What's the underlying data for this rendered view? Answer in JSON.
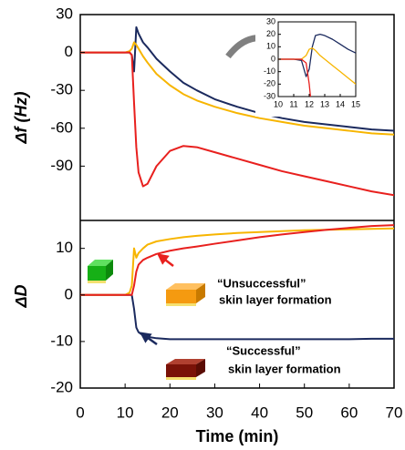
{
  "chart_data": [
    {
      "type": "line",
      "ylabel": "Δf (Hz)",
      "xlim": [
        0,
        70
      ],
      "ylim": [
        -133,
        30
      ],
      "yticks": [
        -90,
        -60,
        -30,
        0,
        30
      ],
      "x": [
        0,
        5,
        10,
        11,
        11.5,
        12,
        12.5,
        13,
        14,
        15,
        17,
        20,
        23,
        26,
        30,
        35,
        40,
        45,
        50,
        55,
        60,
        65,
        70
      ],
      "series": [
        {
          "color": "#1b2a5e",
          "values": [
            0,
            0,
            0,
            0,
            -2,
            -15,
            20,
            15,
            8,
            4,
            -5,
            -15,
            -24,
            -30,
            -37,
            -43,
            -48,
            -52,
            -55,
            -57,
            -59,
            -61,
            -62
          ]
        },
        {
          "color": "#f7b500",
          "values": [
            0,
            0,
            0,
            1,
            3,
            8,
            6,
            3,
            -3,
            -8,
            -17,
            -26,
            -33,
            -38,
            -43,
            -48,
            -52,
            -55,
            -58,
            -60,
            -62,
            -64,
            -65
          ]
        },
        {
          "color": "#e8201e",
          "values": [
            0,
            0,
            0,
            0,
            -2,
            -40,
            -75,
            -95,
            -106,
            -104,
            -90,
            -78,
            -74,
            -75,
            -79,
            -84,
            -89,
            -94,
            -98,
            -102,
            -106,
            -110,
            -113
          ]
        }
      ]
    },
    {
      "type": "line",
      "ylabel": "ΔD",
      "xlabel": "Time (min)",
      "xlim": [
        0,
        70
      ],
      "ylim": [
        -20,
        16
      ],
      "yticks": [
        -20,
        -10,
        0,
        10
      ],
      "xticks": [
        0,
        10,
        20,
        30,
        40,
        50,
        60,
        70
      ],
      "x": [
        0,
        5,
        10,
        11,
        11.5,
        12,
        12.5,
        13,
        14,
        15,
        17,
        20,
        23,
        26,
        30,
        35,
        40,
        45,
        50,
        55,
        60,
        65,
        70
      ],
      "series": [
        {
          "color": "#1b2a5e",
          "values": [
            0,
            0,
            0,
            0,
            0,
            -3,
            -7,
            -8,
            -8.7,
            -9,
            -9.3,
            -9.5,
            -9.5,
            -9.5,
            -9.5,
            -9.5,
            -9.5,
            -9.5,
            -9.5,
            -9.5,
            -9.5,
            -9.4,
            -9.4
          ]
        },
        {
          "color": "#f7b500",
          "values": [
            0,
            0,
            0,
            0.5,
            2,
            10,
            8,
            9,
            10,
            10.8,
            11.5,
            12,
            12.4,
            12.7,
            13,
            13.3,
            13.5,
            13.7,
            13.9,
            14,
            14.1,
            14.2,
            14.3
          ]
        },
        {
          "color": "#e8201e",
          "values": [
            0,
            0,
            0,
            0,
            0,
            2,
            5,
            6.5,
            7.5,
            8,
            8.8,
            9.5,
            10,
            10.4,
            11,
            11.7,
            12.4,
            13,
            13.5,
            14,
            14.4,
            14.8,
            15
          ]
        }
      ],
      "annotations": [
        "“Unsuccessful”",
        "skin layer formation",
        "“Successful”",
        "skin layer formation"
      ]
    },
    {
      "type": "line",
      "xlim": [
        10,
        15
      ],
      "ylim": [
        -30,
        30
      ],
      "xticks": [
        10,
        11,
        12,
        13,
        14,
        15
      ],
      "yticks": [
        -30,
        -20,
        -10,
        0,
        10,
        20,
        30
      ],
      "x": [
        10,
        10.5,
        11,
        11.5,
        11.8,
        12,
        12.2,
        12.4,
        12.7,
        13,
        13.5,
        14,
        14.5,
        15
      ],
      "series": [
        {
          "color": "#1b2a5e",
          "values": [
            0,
            0,
            0,
            -1,
            -14,
            -8,
            10,
            19,
            20,
            19,
            16,
            12,
            8,
            5
          ]
        },
        {
          "color": "#f7b500",
          "values": [
            0,
            0,
            0,
            0,
            3,
            8,
            9,
            7,
            3,
            0,
            -5,
            -10,
            -15,
            -20
          ]
        },
        {
          "color": "#e8201e",
          "values": [
            0,
            0,
            0,
            0,
            -3,
            -20,
            -45,
            null,
            null,
            null,
            null,
            null,
            null,
            null
          ]
        }
      ]
    }
  ]
}
